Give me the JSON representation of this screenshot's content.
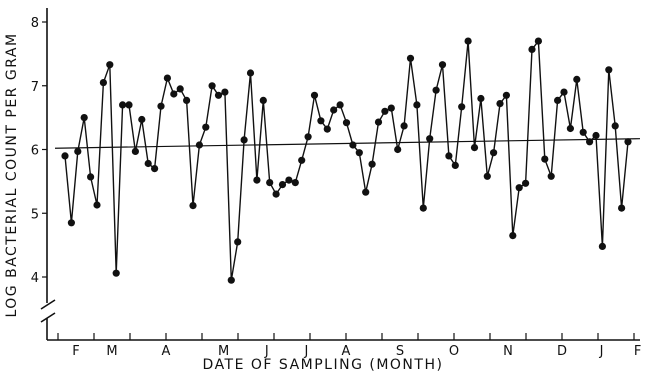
{
  "chart_data": {
    "type": "line",
    "xlabel": "DATE OF SAMPLING (MONTH)",
    "ylabel": "LOG BACTERIAL COUNT PER GRAM",
    "ylim": [
      3.5,
      8.2
    ],
    "yticks": [
      4,
      5,
      6,
      7,
      8
    ],
    "x_tick_labels": [
      "F",
      "M",
      "A",
      "M",
      "J",
      "J",
      "A",
      "S",
      "O",
      "N",
      "D",
      "J",
      "F"
    ],
    "x_tick_month_index": [
      0.5,
      1.5,
      3,
      4.6,
      5.8,
      6.9,
      8,
      9.5,
      11,
      12.5,
      14,
      15.1,
      16.1
    ],
    "grid": false,
    "series": [
      {
        "values": [
          5.9,
          4.85,
          5.97,
          6.5,
          5.57,
          5.13,
          7.05,
          7.33,
          4.06,
          6.7,
          6.7,
          5.97,
          6.47,
          5.78,
          5.7,
          6.68,
          7.12,
          6.87,
          6.95,
          6.77,
          5.12,
          6.07,
          6.35,
          7.0,
          6.85,
          6.9,
          3.95,
          4.55,
          6.15,
          7.2,
          5.52,
          6.77,
          5.48,
          5.3,
          5.45,
          5.52,
          5.48,
          5.83,
          6.2,
          6.85,
          6.45,
          6.32,
          6.62,
          6.7,
          6.42,
          6.07,
          5.95,
          5.33,
          5.77,
          6.43,
          6.6,
          6.65,
          6.0,
          6.37,
          7.43,
          6.7,
          5.08,
          6.17,
          6.93,
          7.33,
          5.9,
          5.75,
          6.67,
          7.7,
          6.03,
          6.8,
          5.58,
          5.95,
          6.72,
          6.85,
          4.65,
          5.4,
          5.47,
          7.57,
          7.7,
          5.85,
          5.58,
          6.77,
          6.9,
          6.33,
          7.1,
          6.27,
          6.12,
          6.22,
          4.48,
          7.25,
          6.37,
          5.08,
          6.12
        ]
      }
    ],
    "trend_line": {
      "start": 6.02,
      "end": 6.17
    }
  }
}
